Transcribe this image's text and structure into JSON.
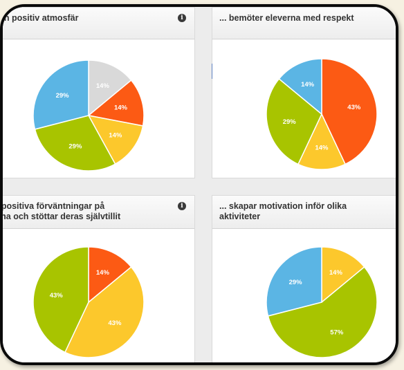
{
  "colors": {
    "blue": "#5bb5e4",
    "gray": "#d9d9d9",
    "orange": "#fc5a14",
    "yellow": "#fcc82c",
    "green": "#a8c400"
  },
  "icons": {
    "info": "info-icon"
  },
  "chart_data": [
    {
      "type": "pie",
      "title": "... en positiv atmosfär",
      "has_info_icon": true,
      "slices": [
        {
          "label": "14%",
          "value": 14,
          "color": "#d9d9d9"
        },
        {
          "label": "14%",
          "value": 14,
          "color": "#fc5a14"
        },
        {
          "label": "14%",
          "value": 14,
          "color": "#fcc82c"
        },
        {
          "label": "29%",
          "value": 29,
          "color": "#a8c400"
        },
        {
          "label": "29%",
          "value": 29,
          "color": "#5bb5e4"
        }
      ]
    },
    {
      "type": "pie",
      "title": "... bemöter eleverna med respekt",
      "has_info_icon": false,
      "slices": [
        {
          "label": "43%",
          "value": 43,
          "color": "#fc5a14"
        },
        {
          "label": "14%",
          "value": 14,
          "color": "#fcc82c"
        },
        {
          "label": "29%",
          "value": 29,
          "color": "#a8c400"
        },
        {
          "label": "14%",
          "value": 14,
          "color": "#5bb5e4"
        }
      ]
    },
    {
      "type": "pie",
      "title_lines": [
        "... har positiva förväntningar på",
        "eleverna och stöttar deras självtillit"
      ],
      "has_info_icon": true,
      "slices": [
        {
          "label": "14%",
          "value": 14,
          "color": "#fc5a14"
        },
        {
          "label": "43%",
          "value": 43,
          "color": "#fcc82c"
        },
        {
          "label": "43%",
          "value": 43,
          "color": "#a8c400"
        }
      ]
    },
    {
      "type": "pie",
      "title_lines": [
        "... skapar motivation inför olika",
        "aktiviteter"
      ],
      "has_info_icon": false,
      "slices": [
        {
          "label": "14%",
          "value": 14,
          "color": "#fcc82c"
        },
        {
          "label": "57%",
          "value": 57,
          "color": "#a8c400"
        },
        {
          "label": "29%",
          "value": 29,
          "color": "#5bb5e4"
        }
      ]
    }
  ]
}
